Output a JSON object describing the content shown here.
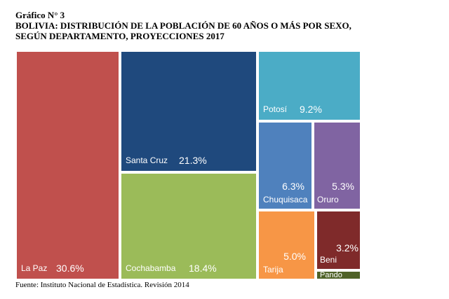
{
  "title": "Gráfico N° 3",
  "subtitle_line1": "BOLIVIA: DISTRIBUCIÓN DE LA POBLACIÓN DE 60 AÑOS O MÁS POR SEXO,",
  "subtitle_line2": "SEGÚN DEPARTAMENTO, PROYECCIONES 2017",
  "source": "Fuente: Instituto Nacional de Estadística. Revisión 2014",
  "chart_data": {
    "type": "treemap",
    "title": "Gráfico N° 3",
    "unit": "%",
    "items": [
      {
        "name": "La Paz",
        "value": 30.6,
        "label": "30.6%",
        "color": "#c0504d"
      },
      {
        "name": "Santa Cruz",
        "value": 21.3,
        "label": "21.3%",
        "color": "#1f497d"
      },
      {
        "name": "Cochabamba",
        "value": 18.4,
        "label": "18.4%",
        "color": "#9bbb59"
      },
      {
        "name": "Potosí",
        "value": 9.2,
        "label": "9.2%",
        "color": "#4bacc6"
      },
      {
        "name": "Chuquisaca",
        "value": 6.3,
        "label": "6.3%",
        "color": "#4f81bd"
      },
      {
        "name": "Oruro",
        "value": 5.3,
        "label": "5.3%",
        "color": "#8064a2"
      },
      {
        "name": "Tarija",
        "value": 5.0,
        "label": "5.0%",
        "color": "#f79646"
      },
      {
        "name": "Beni",
        "value": 3.2,
        "label": "3.2%",
        "color": "#7f2a2a"
      },
      {
        "name": "Pando",
        "value": 0.7,
        "label": "",
        "color": "#4f6228"
      }
    ]
  }
}
